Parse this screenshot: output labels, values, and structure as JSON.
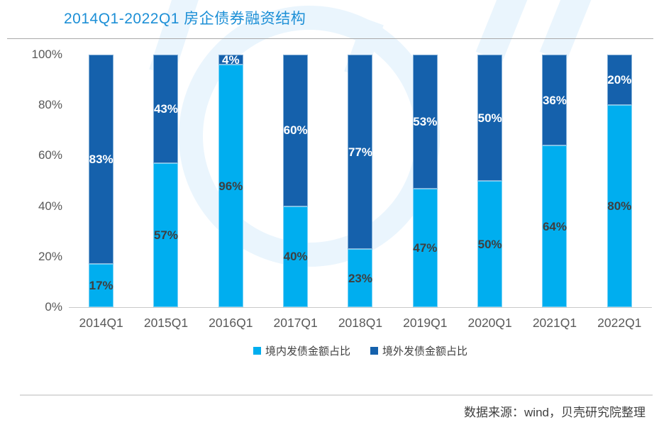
{
  "title": "2014Q1-2022Q1 房企债券融资结构",
  "source_note": "数据来源：wind，贝壳研究院整理",
  "colors": {
    "title_blue": "#1C8FD6",
    "domestic_light_blue": "#00AEEF",
    "overseas_dark_blue": "#1561AC",
    "axis_text": "#595959",
    "bar_label_dark": "#3F3F3F",
    "bar_label_light": "#FFFFFF",
    "watermark": "#EAF5FD"
  },
  "chart_data": {
    "type": "bar",
    "stacked": true,
    "title": "2014Q1-2022Q1 房企债券融资结构",
    "xlabel": "",
    "ylabel": "",
    "ylim": [
      0,
      100
    ],
    "yticks": [
      "0%",
      "20%",
      "40%",
      "60%",
      "80%",
      "100%"
    ],
    "grid": false,
    "legend_position": "bottom",
    "value_suffix": "%",
    "categories": [
      "2014Q1",
      "2015Q1",
      "2016Q1",
      "2017Q1",
      "2018Q1",
      "2019Q1",
      "2020Q1",
      "2021Q1",
      "2022Q1"
    ],
    "series": [
      {
        "name": "境内发债金额占比",
        "color": "#00AEEF",
        "values": [
          17,
          57,
          96,
          40,
          23,
          47,
          50,
          64,
          80
        ]
      },
      {
        "name": "境外发债金额占比",
        "color": "#1561AC",
        "values": [
          83,
          43,
          4,
          60,
          77,
          53,
          50,
          36,
          20
        ]
      }
    ]
  }
}
